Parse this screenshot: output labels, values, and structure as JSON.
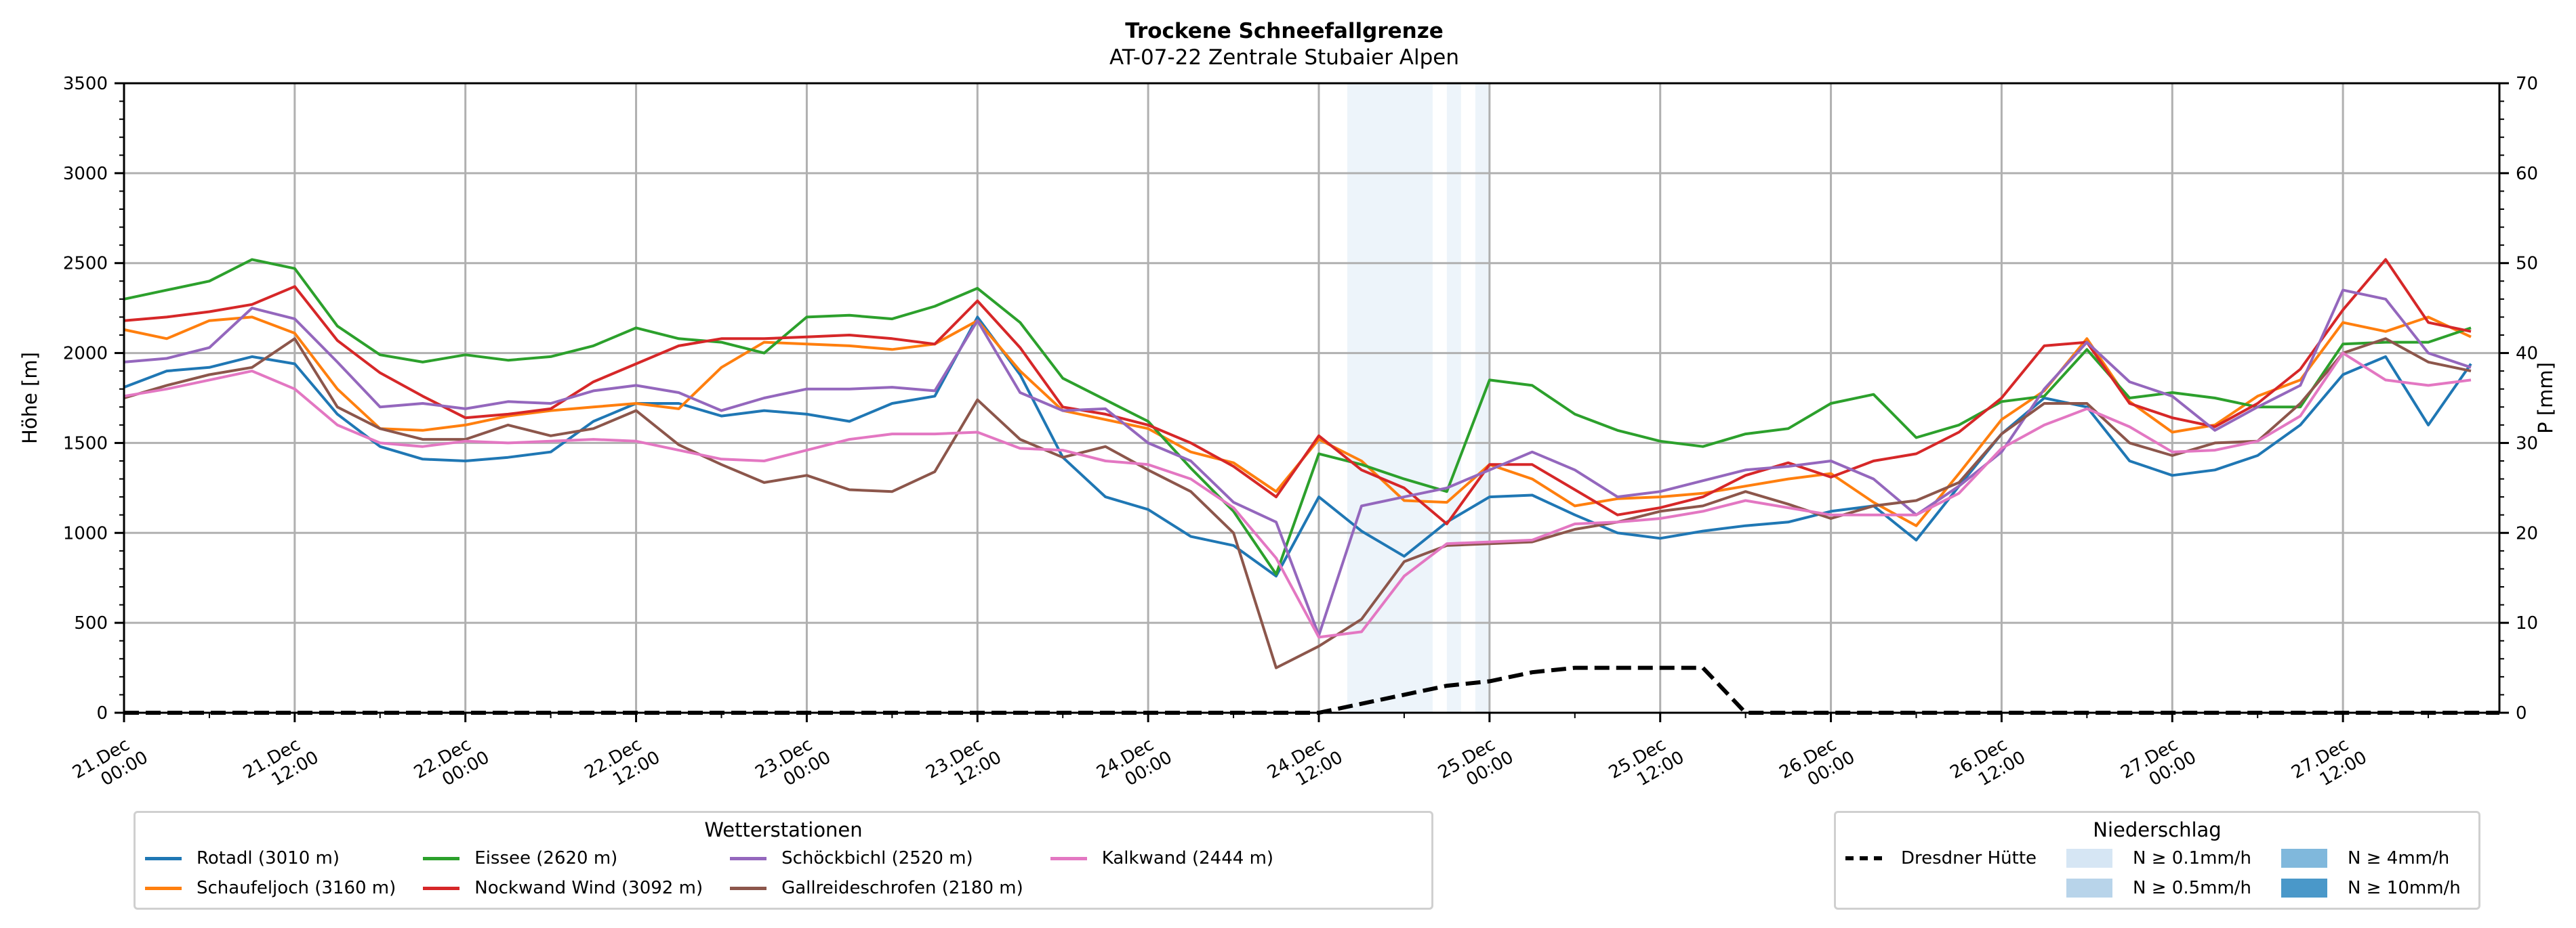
{
  "chart_data": {
    "type": "line",
    "title": "Trockene Schneefallgrenze",
    "subtitle": "AT-07-22 Zentrale Stubaier Alpen",
    "ylabel": "Höhe [m]",
    "y2label": "P [mm]",
    "ylim": [
      0,
      3500
    ],
    "y2lim": [
      0,
      70
    ],
    "yticks": [
      "0",
      "500",
      "1000",
      "1500",
      "2000",
      "2500",
      "3000",
      "3500"
    ],
    "y2ticks": [
      "0",
      "10",
      "20",
      "30",
      "40",
      "50",
      "60",
      "70"
    ],
    "grid": true,
    "x_unit": "hours since 21.Dec 00:00",
    "x_range_hours": [
      0,
      167
    ],
    "xticks": [
      {
        "line1": "21.Dec",
        "line2": "00:00",
        "hour": 0
      },
      {
        "line1": "21.Dec",
        "line2": "12:00",
        "hour": 12
      },
      {
        "line1": "22.Dec",
        "line2": "00:00",
        "hour": 24
      },
      {
        "line1": "22.Dec",
        "line2": "12:00",
        "hour": 36
      },
      {
        "line1": "23.Dec",
        "line2": "00:00",
        "hour": 48
      },
      {
        "line1": "23.Dec",
        "line2": "12:00",
        "hour": 60
      },
      {
        "line1": "24.Dec",
        "line2": "00:00",
        "hour": 72
      },
      {
        "line1": "24.Dec",
        "line2": "12:00",
        "hour": 84
      },
      {
        "line1": "25.Dec",
        "line2": "00:00",
        "hour": 96
      },
      {
        "line1": "25.Dec",
        "line2": "12:00",
        "hour": 108
      },
      {
        "line1": "26.Dec",
        "line2": "00:00",
        "hour": 120
      },
      {
        "line1": "26.Dec",
        "line2": "12:00",
        "hour": 132
      },
      {
        "line1": "27.Dec",
        "line2": "00:00",
        "hour": 144
      },
      {
        "line1": "27.Dec",
        "line2": "12:00",
        "hour": 156
      }
    ],
    "x_hours": [
      0,
      3,
      6,
      9,
      12,
      15,
      18,
      21,
      24,
      27,
      30,
      33,
      36,
      39,
      42,
      45,
      48,
      51,
      54,
      57,
      60,
      63,
      66,
      69,
      72,
      75,
      78,
      81,
      84,
      87,
      90,
      93,
      96,
      99,
      102,
      105,
      108,
      111,
      114,
      117,
      120,
      123,
      126,
      129,
      132,
      135,
      138,
      141,
      144,
      147,
      150,
      153,
      156,
      159,
      162,
      165
    ],
    "series": [
      {
        "name": "Rotadl (3010 m)",
        "color": "#1f77b4",
        "values": [
          1810,
          1900,
          1920,
          1980,
          1940,
          1660,
          1480,
          1410,
          1400,
          1420,
          1450,
          1620,
          1720,
          1720,
          1650,
          1680,
          1660,
          1620,
          1720,
          1760,
          2200,
          1880,
          1420,
          1200,
          1130,
          980,
          930,
          760,
          1200,
          1010,
          870,
          1060,
          1200,
          1210,
          1100,
          1000,
          970,
          1010,
          1040,
          1060,
          1120,
          1150,
          960,
          1260,
          1550,
          1750,
          1700,
          1400,
          1320,
          1350,
          1430,
          1600,
          1880,
          1980,
          1600,
          1940
        ]
      },
      {
        "name": "Schaufeljoch (3160 m)",
        "color": "#ff7f0e",
        "values": [
          2130,
          2080,
          2180,
          2200,
          2110,
          1800,
          1580,
          1570,
          1600,
          1650,
          1680,
          1700,
          1720,
          1690,
          1920,
          2060,
          2050,
          2040,
          2020,
          2050,
          2180,
          1900,
          1680,
          1630,
          1580,
          1450,
          1390,
          1230,
          1520,
          1400,
          1180,
          1170,
          1380,
          1300,
          1150,
          1190,
          1200,
          1220,
          1260,
          1300,
          1330,
          1170,
          1040,
          1330,
          1630,
          1790,
          2080,
          1730,
          1560,
          1600,
          1760,
          1850,
          2170,
          2120,
          2200,
          2090
        ]
      },
      {
        "name": "Eissee (2620 m)",
        "color": "#2ca02c",
        "values": [
          2300,
          2350,
          2400,
          2520,
          2470,
          2150,
          1990,
          1950,
          1990,
          1960,
          1980,
          2040,
          2140,
          2080,
          2060,
          2000,
          2200,
          2210,
          2190,
          2260,
          2360,
          2170,
          1860,
          1740,
          1620,
          1360,
          1120,
          770,
          1440,
          1380,
          1300,
          1230,
          1850,
          1820,
          1660,
          1570,
          1510,
          1480,
          1550,
          1580,
          1720,
          1770,
          1530,
          1600,
          1730,
          1760,
          2020,
          1750,
          1780,
          1750,
          1700,
          1700,
          2050,
          2060,
          2060,
          2140
        ]
      },
      {
        "name": "Nockwand Wind (3092 m)",
        "color": "#d62728",
        "values": [
          2180,
          2200,
          2230,
          2270,
          2370,
          2070,
          1890,
          1760,
          1640,
          1660,
          1690,
          1840,
          1940,
          2040,
          2080,
          2080,
          2090,
          2100,
          2080,
          2050,
          2290,
          2030,
          1700,
          1660,
          1600,
          1500,
          1370,
          1200,
          1540,
          1350,
          1250,
          1050,
          1380,
          1380,
          1240,
          1100,
          1140,
          1200,
          1320,
          1390,
          1310,
          1400,
          1440,
          1560,
          1750,
          2040,
          2060,
          1720,
          1640,
          1590,
          1720,
          1910,
          2240,
          2520,
          2170,
          2120
        ]
      },
      {
        "name": "Schöckbichl (2520 m)",
        "color": "#9467bd",
        "values": [
          1950,
          1970,
          2030,
          2250,
          2190,
          1950,
          1700,
          1720,
          1690,
          1730,
          1720,
          1790,
          1820,
          1780,
          1680,
          1750,
          1800,
          1800,
          1810,
          1790,
          2180,
          1780,
          1680,
          1690,
          1500,
          1400,
          1170,
          1060,
          430,
          1150,
          1200,
          1250,
          1350,
          1450,
          1350,
          1200,
          1230,
          1290,
          1350,
          1370,
          1400,
          1300,
          1100,
          1260,
          1450,
          1800,
          2060,
          1840,
          1760,
          1570,
          1700,
          1820,
          2350,
          2300,
          2000,
          1920
        ]
      },
      {
        "name": "Gallreideschrofen (2180 m)",
        "color": "#8c564b",
        "values": [
          1750,
          1820,
          1880,
          1920,
          2080,
          1700,
          1580,
          1520,
          1520,
          1600,
          1540,
          1580,
          1680,
          1490,
          1380,
          1280,
          1320,
          1240,
          1230,
          1340,
          1740,
          1520,
          1420,
          1480,
          1350,
          1230,
          1000,
          250,
          370,
          520,
          840,
          930,
          940,
          950,
          1020,
          1060,
          1120,
          1150,
          1230,
          1160,
          1080,
          1150,
          1180,
          1280,
          1550,
          1720,
          1720,
          1500,
          1430,
          1500,
          1510,
          1720,
          2000,
          2080,
          1950,
          1900
        ]
      },
      {
        "name": "Kalkwand (2444 m)",
        "color": "#e377c2",
        "values": [
          1760,
          1800,
          1850,
          1900,
          1800,
          1600,
          1500,
          1480,
          1510,
          1500,
          1510,
          1520,
          1510,
          1460,
          1410,
          1400,
          1460,
          1520,
          1550,
          1550,
          1560,
          1470,
          1460,
          1400,
          1380,
          1300,
          1140,
          860,
          420,
          450,
          760,
          940,
          950,
          960,
          1050,
          1060,
          1080,
          1120,
          1180,
          1140,
          1100,
          1100,
          1100,
          1220,
          1470,
          1600,
          1690,
          1590,
          1450,
          1460,
          1510,
          1650,
          2000,
          1850,
          1820,
          1850
        ]
      }
    ],
    "precipitation": {
      "station": "Dresdner Hütte",
      "unit": "mm",
      "hours": [
        0,
        24,
        48,
        72,
        84,
        87,
        90,
        93,
        96,
        99,
        102,
        105,
        108,
        111,
        114,
        120,
        144,
        167
      ],
      "values": [
        0,
        0,
        0,
        0,
        0,
        1,
        2,
        3,
        3.5,
        4.5,
        5,
        5,
        5,
        5,
        0,
        0,
        0,
        0
      ]
    },
    "precip_bands": {
      "class": "N ≥ 0.1mm/h",
      "color": "#d6e6f4",
      "intervals_hours": [
        [
          86,
          92
        ],
        [
          93,
          94
        ],
        [
          95,
          96
        ]
      ]
    },
    "legends": {
      "stations": {
        "title": "Wetterstationen",
        "placement": "bottom-left",
        "items": [
          "Rotadl (3010 m)",
          "Schaufeljoch (3160 m)",
          "Eissee (2620 m)",
          "Nockwand Wind (3092 m)",
          "Schöckbichl (2520 m)",
          "Gallreideschrofen (2180 m)",
          "Kalkwand (2444 m)"
        ]
      },
      "precipitation": {
        "title": "Niederschlag",
        "placement": "bottom-right",
        "line_label": "Dresdner Hütte",
        "classes": [
          {
            "label": "N ≥ 0.1mm/h",
            "color": "#d6e6f4"
          },
          {
            "label": "N ≥ 0.5mm/h",
            "color": "#b8d4ea"
          },
          {
            "label": "N ≥ 4mm/h",
            "color": "#80b8dc"
          },
          {
            "label": "N ≥ 10mm/h",
            "color": "#4a98c9"
          }
        ]
      }
    }
  }
}
